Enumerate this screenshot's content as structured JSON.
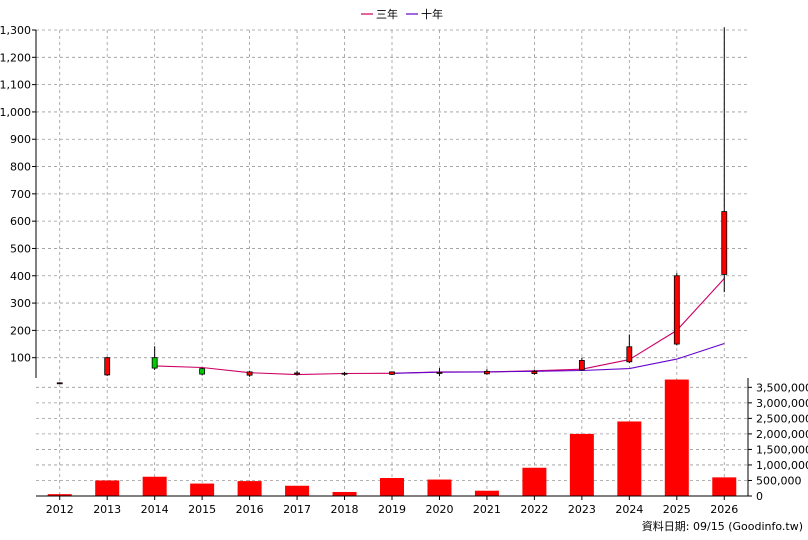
{
  "legend": {
    "line_3yr": "三年",
    "line_10yr": "十年"
  },
  "footer": {
    "source_label": "資料日期: 09/15  (Goodinfo.tw)"
  },
  "colors": {
    "up_candle": "#ff0000",
    "down_candle": "#00cc00",
    "volume_bar": "#ff0000",
    "ma_3yr": "#cc0066",
    "ma_10yr": "#6600cc",
    "grid": "#999999"
  },
  "chart_data": [
    {
      "type": "candlestick",
      "categories": [
        "2012",
        "2013",
        "2014",
        "2015",
        "2016",
        "2017",
        "2018",
        "2019",
        "2020",
        "2021",
        "2022",
        "2023",
        "2024",
        "2025",
        "2026"
      ],
      "ylim": [
        0,
        1300
      ],
      "yticks": [
        100,
        200,
        300,
        400,
        500,
        600,
        700,
        800,
        900,
        1000,
        1100,
        1200,
        1300
      ],
      "ytick_labels": [
        "100",
        "200",
        "300",
        "400",
        "500",
        "600",
        "700",
        "800",
        "900",
        "1,000",
        "1,100",
        "1,200",
        "1,300"
      ],
      "grid": true,
      "candles": [
        {
          "year": "2012",
          "open": 8,
          "close": 8,
          "high": 10,
          "low": 6
        },
        {
          "year": "2013",
          "open": 37,
          "close": 100,
          "high": 103,
          "low": 33
        },
        {
          "year": "2014",
          "open": 100,
          "close": 62,
          "high": 142,
          "low": 55
        },
        {
          "year": "2015",
          "open": 60,
          "close": 40,
          "high": 63,
          "low": 35
        },
        {
          "year": "2016",
          "open": 36,
          "close": 48,
          "high": 52,
          "low": 30
        },
        {
          "year": "2017",
          "open": 40,
          "close": 44,
          "high": 52,
          "low": 34
        },
        {
          "year": "2018",
          "open": 40,
          "close": 43,
          "high": 48,
          "low": 34
        },
        {
          "year": "2019",
          "open": 39,
          "close": 48,
          "high": 50,
          "low": 37
        },
        {
          "year": "2020",
          "open": 44,
          "close": 46,
          "high": 62,
          "low": 32
        },
        {
          "year": "2021",
          "open": 41,
          "close": 50,
          "high": 58,
          "low": 38
        },
        {
          "year": "2022",
          "open": 42,
          "close": 50,
          "high": 56,
          "low": 38
        },
        {
          "year": "2023",
          "open": 55,
          "close": 90,
          "high": 100,
          "low": 52
        },
        {
          "year": "2024",
          "open": 85,
          "close": 140,
          "high": 185,
          "low": 80
        },
        {
          "year": "2025",
          "open": 150,
          "close": 400,
          "high": 410,
          "low": 145
        },
        {
          "year": "2026",
          "open": 405,
          "close": 635,
          "high": 1310,
          "low": 340
        }
      ],
      "series": [
        {
          "name": "三年",
          "values": [
            null,
            null,
            70,
            64,
            45,
            38,
            42,
            43,
            48,
            48,
            52,
            58,
            93,
            200,
            390
          ]
        },
        {
          "name": "十年",
          "values": [
            null,
            null,
            null,
            null,
            null,
            null,
            null,
            43,
            47,
            48,
            50,
            53,
            60,
            95,
            152
          ]
        }
      ]
    },
    {
      "type": "bar",
      "categories": [
        "2012",
        "2013",
        "2014",
        "2015",
        "2016",
        "2017",
        "2018",
        "2019",
        "2020",
        "2021",
        "2022",
        "2023",
        "2024",
        "2025",
        "2026"
      ],
      "values": [
        60000,
        500000,
        620000,
        400000,
        480000,
        330000,
        130000,
        580000,
        530000,
        170000,
        910000,
        2000000,
        2400000,
        3750000,
        600000
      ],
      "ylim": [
        0,
        3800000
      ],
      "yticks": [
        0,
        500000,
        1000000,
        1500000,
        2000000,
        2500000,
        3000000,
        3500000
      ],
      "ytick_labels": [
        "0",
        "500,000",
        "1,000,000",
        "1,500,000",
        "2,000,000",
        "2,500,000",
        "3,000,000",
        "3,500,000"
      ],
      "grid": true
    }
  ]
}
